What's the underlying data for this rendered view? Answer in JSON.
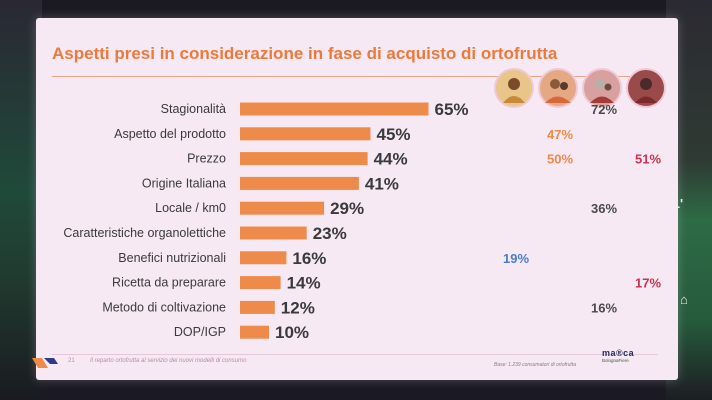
{
  "slide": {
    "title": "Aspetti presi in considerazione in fase di acquisto di ortofrutta",
    "page_number": "21",
    "footer": "Il reparto ortofrutta al servizio dei nuovi modelli di consumo",
    "base_note": "Base: 1.239 consumatori di ortofrutta",
    "brand_name": "ma®ca",
    "brand_sub": "BolognaFiere"
  },
  "segments": [
    {
      "icon": "segment-avatar-1-icon",
      "color": "#c58a3a"
    },
    {
      "icon": "segment-avatar-2-icon",
      "color": "#d46a3a"
    },
    {
      "icon": "segment-avatar-3-icon",
      "color": "#a33b3b"
    },
    {
      "icon": "segment-avatar-4-icon",
      "color": "#7a2a2a"
    }
  ],
  "chart_data": {
    "type": "bar",
    "orientation": "horizontal",
    "title": "Aspetti presi in considerazione in fase di acquisto di ortofrutta",
    "categories": [
      "Stagionalità",
      "Aspetto del prodotto",
      "Prezzo",
      "Origine Italiana",
      "Locale / km0",
      "Caratteristiche organolettiche",
      "Benefici nutrizionali",
      "Ricetta da preparare",
      "Metodo di coltivazione",
      "DOP/IGP"
    ],
    "values": [
      65,
      45,
      44,
      41,
      29,
      23,
      16,
      14,
      12,
      10
    ],
    "value_labels": [
      "65%",
      "45%",
      "44%",
      "41%",
      "29%",
      "23%",
      "16%",
      "14%",
      "12%",
      "10%"
    ],
    "bar_color": "#ee8a4a",
    "xlim": [
      0,
      100
    ],
    "comparisons": [
      {
        "category": "Stagionalità",
        "segment": 3,
        "value": 72,
        "label": "72%",
        "color": "#4a4a4a"
      },
      {
        "category": "Aspetto del prodotto",
        "segment": 2,
        "value": 47,
        "label": "47%",
        "color": "#ee8a4a"
      },
      {
        "category": "Prezzo",
        "segment": 2,
        "value": 50,
        "label": "50%",
        "color": "#ee8a4a"
      },
      {
        "category": "Prezzo",
        "segment": 4,
        "value": 51,
        "label": "51%",
        "color": "#c9334f"
      },
      {
        "category": "Locale / km0",
        "segment": 3,
        "value": 36,
        "label": "36%",
        "color": "#4a4a4a"
      },
      {
        "category": "Benefici nutrizionali",
        "segment": 1,
        "value": 19,
        "label": "19%",
        "color": "#4a7ec8"
      },
      {
        "category": "Ricetta da preparare",
        "segment": 4,
        "value": 17,
        "label": "17%",
        "color": "#c9334f"
      },
      {
        "category": "Metodo di coltivazione",
        "segment": 3,
        "value": 16,
        "label": "16%",
        "color": "#4a4a4a"
      }
    ]
  }
}
